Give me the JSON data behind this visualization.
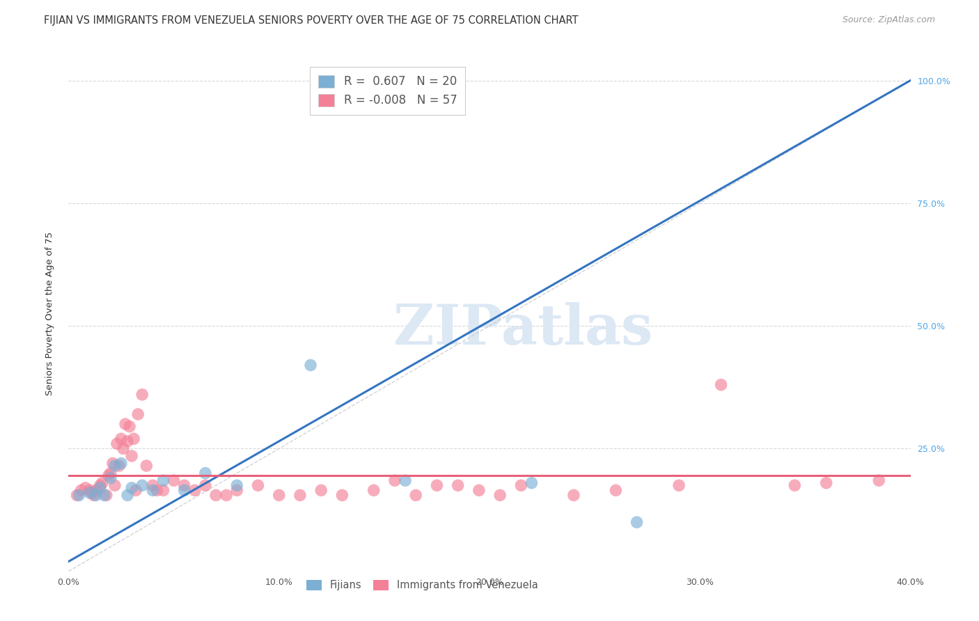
{
  "title": "FIJIAN VS IMMIGRANTS FROM VENEZUELA SENIORS POVERTY OVER THE AGE OF 75 CORRELATION CHART",
  "source": "Source: ZipAtlas.com",
  "ylabel": "Seniors Poverty Over the Age of 75",
  "xlim": [
    0.0,
    0.4
  ],
  "ylim": [
    0.0,
    1.05
  ],
  "xticks": [
    0.0,
    0.05,
    0.1,
    0.15,
    0.2,
    0.25,
    0.3,
    0.35,
    0.4
  ],
  "xticklabels": [
    "0.0%",
    "",
    "10.0%",
    "",
    "20.0%",
    "",
    "30.0%",
    "",
    "40.0%"
  ],
  "yticks": [
    0.0,
    0.25,
    0.5,
    0.75,
    1.0
  ],
  "left_yticklabels": [
    "",
    "",
    "",
    "",
    ""
  ],
  "right_yticklabels": [
    "",
    "25.0%",
    "50.0%",
    "75.0%",
    "100.0%"
  ],
  "fijian_color": "#7bafd4",
  "venezuela_color": "#f48098",
  "fijian_line_color": "#3375c0",
  "venezuela_line_color": "#e8607a",
  "diagonal_line_color": "#c8c8c8",
  "background_color": "#ffffff",
  "grid_color": "#d8d8d8",
  "watermark_text": "ZIPatlas",
  "watermark_color": "#dce8f4",
  "legend_label_1": "R =  0.607   N = 20",
  "legend_label_2": "R = -0.008   N = 57",
  "fijian_scatter_x": [
    0.005,
    0.01,
    0.013,
    0.015,
    0.017,
    0.02,
    0.022,
    0.025,
    0.028,
    0.03,
    0.035,
    0.04,
    0.045,
    0.055,
    0.065,
    0.08,
    0.115,
    0.16,
    0.22,
    0.27
  ],
  "fijian_scatter_y": [
    0.155,
    0.16,
    0.155,
    0.17,
    0.155,
    0.19,
    0.215,
    0.22,
    0.155,
    0.17,
    0.175,
    0.165,
    0.185,
    0.165,
    0.2,
    0.175,
    0.42,
    0.185,
    0.18,
    0.1
  ],
  "venezuela_scatter_x": [
    0.004,
    0.006,
    0.008,
    0.01,
    0.011,
    0.012,
    0.013,
    0.015,
    0.016,
    0.018,
    0.019,
    0.02,
    0.021,
    0.022,
    0.023,
    0.024,
    0.025,
    0.026,
    0.027,
    0.028,
    0.029,
    0.03,
    0.031,
    0.032,
    0.033,
    0.035,
    0.037,
    0.04,
    0.042,
    0.045,
    0.05,
    0.055,
    0.06,
    0.065,
    0.07,
    0.075,
    0.08,
    0.09,
    0.1,
    0.11,
    0.12,
    0.13,
    0.145,
    0.155,
    0.165,
    0.175,
    0.185,
    0.195,
    0.205,
    0.215,
    0.24,
    0.26,
    0.29,
    0.31,
    0.345,
    0.36,
    0.385
  ],
  "venezuela_scatter_y": [
    0.155,
    0.165,
    0.17,
    0.165,
    0.16,
    0.155,
    0.165,
    0.175,
    0.18,
    0.155,
    0.195,
    0.2,
    0.22,
    0.175,
    0.26,
    0.215,
    0.27,
    0.25,
    0.3,
    0.265,
    0.295,
    0.235,
    0.27,
    0.165,
    0.32,
    0.36,
    0.215,
    0.175,
    0.165,
    0.165,
    0.185,
    0.175,
    0.165,
    0.175,
    0.155,
    0.155,
    0.165,
    0.175,
    0.155,
    0.155,
    0.165,
    0.155,
    0.165,
    0.185,
    0.155,
    0.175,
    0.175,
    0.165,
    0.155,
    0.175,
    0.155,
    0.165,
    0.175,
    0.38,
    0.175,
    0.18,
    0.185
  ],
  "fijian_line_x0": 0.0,
  "fijian_line_y0": 0.02,
  "fijian_line_x1": 0.4,
  "fijian_line_y1": 1.0,
  "venezuela_line_x0": 0.0,
  "venezuela_line_y0": 0.195,
  "venezuela_line_x1": 0.4,
  "venezuela_line_y1": 0.195,
  "title_fontsize": 10.5,
  "axis_label_fontsize": 9.5,
  "tick_fontsize": 9,
  "source_fontsize": 9,
  "legend_fontsize": 12
}
